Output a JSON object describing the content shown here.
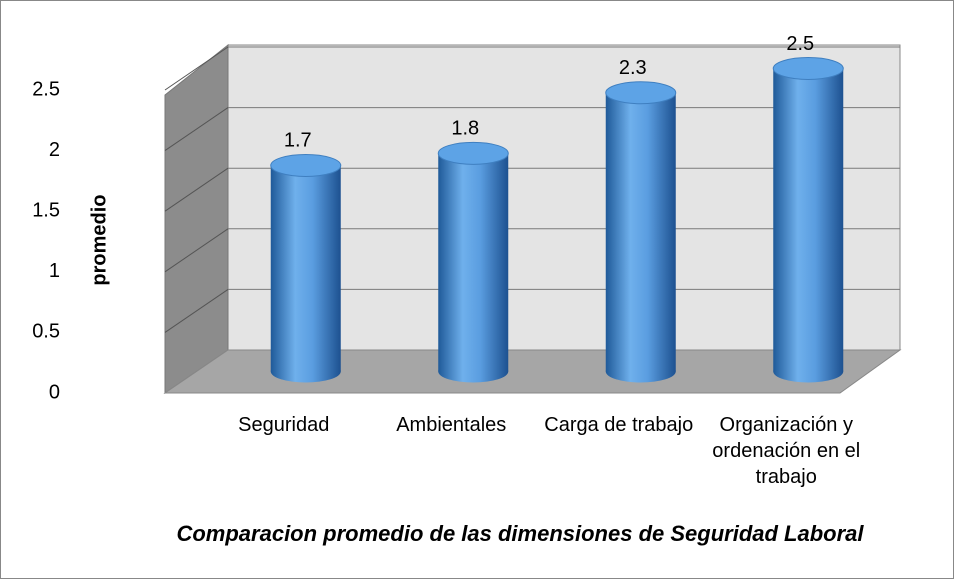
{
  "chart_data": {
    "type": "bar",
    "title": "Comparacion promedio de las dimensiones de Seguridad Laboral",
    "y_label": "promedio",
    "categories": [
      "Seguridad",
      "Ambientales",
      "Carga de trabajo",
      "Organización y ordenación en el trabajo"
    ],
    "values": [
      1.7,
      1.8,
      2.3,
      2.5
    ],
    "color": "#4a8fd6",
    "ylim": [
      0,
      2.5
    ],
    "yticks": [
      0,
      0.5,
      1,
      1.5,
      2,
      2.5
    ],
    "grid": true
  }
}
